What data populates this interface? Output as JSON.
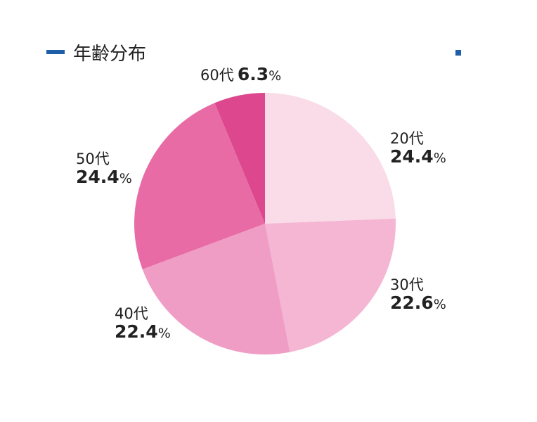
{
  "chart_data": {
    "type": "pie",
    "title": "年齢分布",
    "start_angle": "12 o'clock",
    "direction": "clockwise",
    "slices": [
      {
        "label": "20代",
        "value": 24.4,
        "color": "#fadbe8"
      },
      {
        "label": "30代",
        "value": 22.6,
        "color": "#f5b6d3"
      },
      {
        "label": "40代",
        "value": 22.4,
        "color": "#f09dc5"
      },
      {
        "label": "50代",
        "value": 24.4,
        "color": "#e86ba6"
      },
      {
        "label": "60代",
        "value": 6.3,
        "color": "#dc478d"
      }
    ],
    "unit": "%",
    "accent_color": "#1f5fa8"
  }
}
